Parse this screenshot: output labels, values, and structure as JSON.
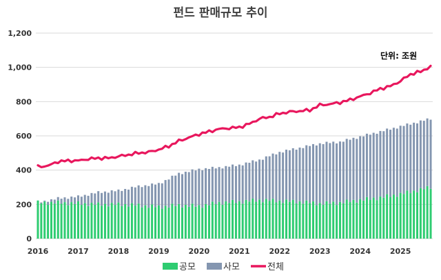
{
  "chart_data": {
    "type": "bar",
    "title": "펀드 판매규모  추이",
    "unit_label": "단위: 조원",
    "y_ticks": [
      "0",
      "200",
      "400",
      "600",
      "800",
      "1,000",
      "1,200"
    ],
    "ylim": [
      0,
      1200
    ],
    "x_ticks": [
      "2016",
      "2017",
      "2018",
      "2019",
      "2020",
      "2021",
      "2022",
      "2023",
      "2024",
      "2025"
    ],
    "x_start": 2016.0,
    "x_end": 2025.75,
    "grid": "horizontal",
    "legend_position": "bottom",
    "colors": {
      "public": "#2ecc71",
      "private": "#8496b0",
      "total": "#e8175d"
    },
    "series": [
      {
        "name": "공모",
        "kind": "bar",
        "stack": "fund",
        "points": [
          [
            2016.0,
            210
          ],
          [
            2016.5,
            210
          ],
          [
            2017.0,
            205
          ],
          [
            2017.5,
            200
          ],
          [
            2018.0,
            200
          ],
          [
            2018.5,
            195
          ],
          [
            2019.0,
            185
          ],
          [
            2019.5,
            195
          ],
          [
            2020.0,
            190
          ],
          [
            2020.5,
            210
          ],
          [
            2021.0,
            215
          ],
          [
            2021.5,
            225
          ],
          [
            2022.0,
            220
          ],
          [
            2022.5,
            215
          ],
          [
            2023.0,
            205
          ],
          [
            2023.5,
            210
          ],
          [
            2024.0,
            225
          ],
          [
            2024.5,
            240
          ],
          [
            2025.0,
            260
          ],
          [
            2025.75,
            300
          ]
        ]
      },
      {
        "name": "사모",
        "kind": "bar",
        "stack": "fund",
        "points": [
          [
            2016.0,
            0
          ],
          [
            2016.5,
            25
          ],
          [
            2017.0,
            40
          ],
          [
            2017.5,
            70
          ],
          [
            2018.0,
            80
          ],
          [
            2018.5,
            110
          ],
          [
            2019.0,
            135
          ],
          [
            2019.5,
            185
          ],
          [
            2020.0,
            215
          ],
          [
            2020.5,
            205
          ],
          [
            2021.0,
            215
          ],
          [
            2021.5,
            235
          ],
          [
            2022.0,
            285
          ],
          [
            2022.5,
            315
          ],
          [
            2023.0,
            350
          ],
          [
            2023.5,
            355
          ],
          [
            2024.0,
            370
          ],
          [
            2024.5,
            385
          ],
          [
            2025.0,
            395
          ],
          [
            2025.75,
            400
          ]
        ]
      },
      {
        "name": "전체",
        "kind": "line",
        "points": [
          [
            2016.0,
            420
          ],
          [
            2016.25,
            425
          ],
          [
            2016.5,
            450
          ],
          [
            2016.75,
            455
          ],
          [
            2017.0,
            455
          ],
          [
            2017.25,
            465
          ],
          [
            2017.5,
            470
          ],
          [
            2017.75,
            470
          ],
          [
            2018.0,
            480
          ],
          [
            2018.25,
            490
          ],
          [
            2018.5,
            500
          ],
          [
            2018.75,
            505
          ],
          [
            2019.0,
            520
          ],
          [
            2019.25,
            540
          ],
          [
            2019.5,
            570
          ],
          [
            2019.75,
            590
          ],
          [
            2020.0,
            610
          ],
          [
            2020.25,
            625
          ],
          [
            2020.5,
            640
          ],
          [
            2020.75,
            645
          ],
          [
            2021.0,
            650
          ],
          [
            2021.25,
            670
          ],
          [
            2021.5,
            700
          ],
          [
            2021.75,
            710
          ],
          [
            2022.0,
            730
          ],
          [
            2022.25,
            740
          ],
          [
            2022.5,
            745
          ],
          [
            2022.75,
            750
          ],
          [
            2023.0,
            780
          ],
          [
            2023.25,
            785
          ],
          [
            2023.5,
            795
          ],
          [
            2023.75,
            810
          ],
          [
            2024.0,
            830
          ],
          [
            2024.25,
            850
          ],
          [
            2024.5,
            875
          ],
          [
            2024.75,
            890
          ],
          [
            2025.0,
            920
          ],
          [
            2025.25,
            960
          ],
          [
            2025.5,
            975
          ],
          [
            2025.75,
            1005
          ]
        ]
      }
    ]
  }
}
